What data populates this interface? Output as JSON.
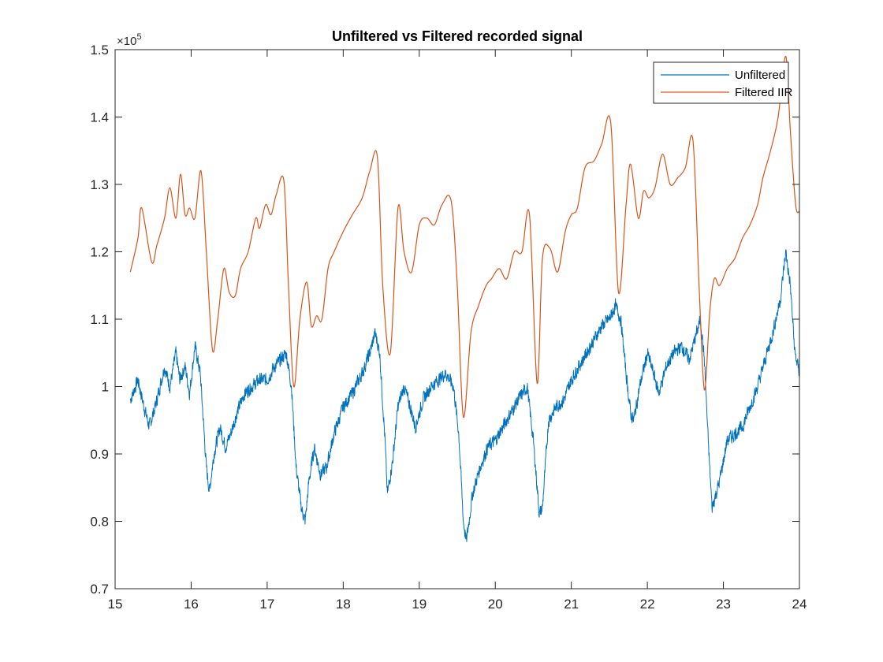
{
  "chart_data": {
    "type": "line",
    "title": "Unfiltered vs Filtered recorded signal",
    "xlabel": "",
    "ylabel": "",
    "xlim": [
      15,
      24
    ],
    "ylim": [
      0.7,
      1.5
    ],
    "y_multiplier": {
      "base": "×10",
      "exponent": "5"
    },
    "x_ticks": [
      15,
      16,
      17,
      18,
      19,
      20,
      21,
      22,
      23,
      24
    ],
    "x_tick_labels": [
      "15",
      "16",
      "17",
      "18",
      "19",
      "20",
      "21",
      "22",
      "23",
      "24"
    ],
    "y_ticks": [
      0.7,
      0.8,
      0.9,
      1.0,
      1.1,
      1.2,
      1.3,
      1.4,
      1.5
    ],
    "y_tick_labels": [
      "0.7",
      "0.8",
      "0.9",
      "1",
      "1.1",
      "1.2",
      "1.3",
      "1.4",
      "1.5"
    ],
    "grid": false,
    "legend_position": "top-right",
    "series": [
      {
        "name": "Unfiltered",
        "color": "#0072BD",
        "noisy": true,
        "x": [
          15.2,
          15.3,
          15.38,
          15.45,
          15.55,
          15.65,
          15.72,
          15.8,
          15.85,
          15.92,
          15.98,
          16.05,
          16.12,
          16.2,
          16.24,
          16.3,
          16.38,
          16.45,
          16.52,
          16.6,
          16.7,
          16.8,
          16.9,
          17.0,
          17.1,
          17.18,
          17.25,
          17.32,
          17.38,
          17.45,
          17.5,
          17.55,
          17.62,
          17.7,
          17.78,
          17.88,
          18.0,
          18.12,
          18.25,
          18.35,
          18.42,
          18.48,
          18.55,
          18.58,
          18.65,
          18.72,
          18.8,
          18.88,
          18.95,
          19.05,
          19.15,
          19.25,
          19.35,
          19.45,
          19.52,
          19.58,
          19.62,
          19.7,
          19.8,
          19.9,
          20.0,
          20.1,
          20.2,
          20.3,
          20.42,
          20.5,
          20.58,
          20.62,
          20.7,
          20.8,
          20.9,
          21.0,
          21.1,
          21.2,
          21.3,
          21.4,
          21.5,
          21.58,
          21.65,
          21.72,
          21.78,
          21.82,
          21.9,
          22.0,
          22.08,
          22.15,
          22.25,
          22.35,
          22.45,
          22.55,
          22.65,
          22.7,
          22.75,
          22.8,
          22.85,
          22.95,
          23.05,
          23.15,
          23.25,
          23.35,
          23.45,
          23.55,
          23.65,
          23.75,
          23.82,
          23.88,
          23.94,
          24.0
        ],
        "values": [
          0.98,
          1.01,
          0.97,
          0.94,
          0.98,
          1.03,
          1.0,
          1.05,
          1.01,
          1.03,
          0.99,
          1.06,
          1.02,
          0.88,
          0.845,
          0.9,
          0.94,
          0.91,
          0.93,
          0.96,
          0.99,
          1.0,
          1.01,
          1.01,
          1.03,
          1.04,
          1.05,
          1.0,
          0.88,
          0.82,
          0.8,
          0.86,
          0.91,
          0.87,
          0.88,
          0.93,
          0.97,
          0.99,
          1.02,
          1.05,
          1.08,
          1.05,
          0.92,
          0.84,
          0.89,
          0.97,
          1.0,
          0.97,
          0.94,
          0.98,
          1.0,
          1.01,
          1.02,
          1.0,
          0.93,
          0.8,
          0.77,
          0.84,
          0.88,
          0.91,
          0.92,
          0.94,
          0.96,
          0.98,
          1.0,
          0.92,
          0.81,
          0.82,
          0.95,
          0.97,
          0.98,
          1.01,
          1.03,
          1.05,
          1.07,
          1.09,
          1.1,
          1.12,
          1.1,
          1.02,
          0.96,
          0.95,
          1.0,
          1.05,
          1.02,
          0.99,
          1.03,
          1.05,
          1.06,
          1.04,
          1.08,
          1.1,
          1.04,
          0.92,
          0.82,
          0.86,
          0.92,
          0.93,
          0.94,
          0.97,
          1.0,
          1.04,
          1.08,
          1.13,
          1.2,
          1.15,
          1.05,
          1.02
        ]
      },
      {
        "name": "Filtered IIR",
        "color": "#D95319",
        "noisy": false,
        "x": [
          15.2,
          15.3,
          15.35,
          15.48,
          15.55,
          15.65,
          15.72,
          15.8,
          15.86,
          15.92,
          15.98,
          16.05,
          16.13,
          16.2,
          16.28,
          16.35,
          16.43,
          16.5,
          16.58,
          16.65,
          16.75,
          16.85,
          16.9,
          16.98,
          17.05,
          17.12,
          17.22,
          17.28,
          17.35,
          17.43,
          17.52,
          17.58,
          17.65,
          17.72,
          17.8,
          17.88,
          18.0,
          18.12,
          18.25,
          18.35,
          18.45,
          18.52,
          18.62,
          18.72,
          18.8,
          18.9,
          19.0,
          19.1,
          19.2,
          19.3,
          19.42,
          19.5,
          19.58,
          19.68,
          19.78,
          19.88,
          19.95,
          20.05,
          20.15,
          20.25,
          20.35,
          20.45,
          20.55,
          20.62,
          20.72,
          20.82,
          20.92,
          21.0,
          21.08,
          21.18,
          21.3,
          21.4,
          21.52,
          21.62,
          21.72,
          21.78,
          21.88,
          21.95,
          22.02,
          22.1,
          22.2,
          22.3,
          22.4,
          22.5,
          22.6,
          22.68,
          22.75,
          22.82,
          22.88,
          22.95,
          23.05,
          23.15,
          23.25,
          23.35,
          23.45,
          23.52,
          23.62,
          23.72,
          23.82,
          23.88,
          23.95,
          24.0
        ],
        "values": [
          1.17,
          1.22,
          1.265,
          1.185,
          1.21,
          1.25,
          1.295,
          1.25,
          1.315,
          1.255,
          1.265,
          1.25,
          1.32,
          1.2,
          1.055,
          1.1,
          1.175,
          1.14,
          1.135,
          1.175,
          1.2,
          1.25,
          1.235,
          1.27,
          1.255,
          1.285,
          1.305,
          1.15,
          1.0,
          1.1,
          1.155,
          1.09,
          1.105,
          1.1,
          1.175,
          1.2,
          1.23,
          1.255,
          1.28,
          1.32,
          1.34,
          1.15,
          1.05,
          1.265,
          1.2,
          1.17,
          1.24,
          1.25,
          1.24,
          1.27,
          1.275,
          1.15,
          0.955,
          1.08,
          1.12,
          1.15,
          1.16,
          1.175,
          1.16,
          1.2,
          1.2,
          1.255,
          1.005,
          1.19,
          1.205,
          1.17,
          1.23,
          1.255,
          1.265,
          1.325,
          1.335,
          1.36,
          1.39,
          1.14,
          1.27,
          1.33,
          1.25,
          1.29,
          1.28,
          1.295,
          1.345,
          1.3,
          1.31,
          1.325,
          1.365,
          1.15,
          0.995,
          1.11,
          1.16,
          1.15,
          1.175,
          1.19,
          1.22,
          1.24,
          1.27,
          1.31,
          1.35,
          1.4,
          1.49,
          1.38,
          1.27,
          1.26
        ]
      }
    ]
  }
}
